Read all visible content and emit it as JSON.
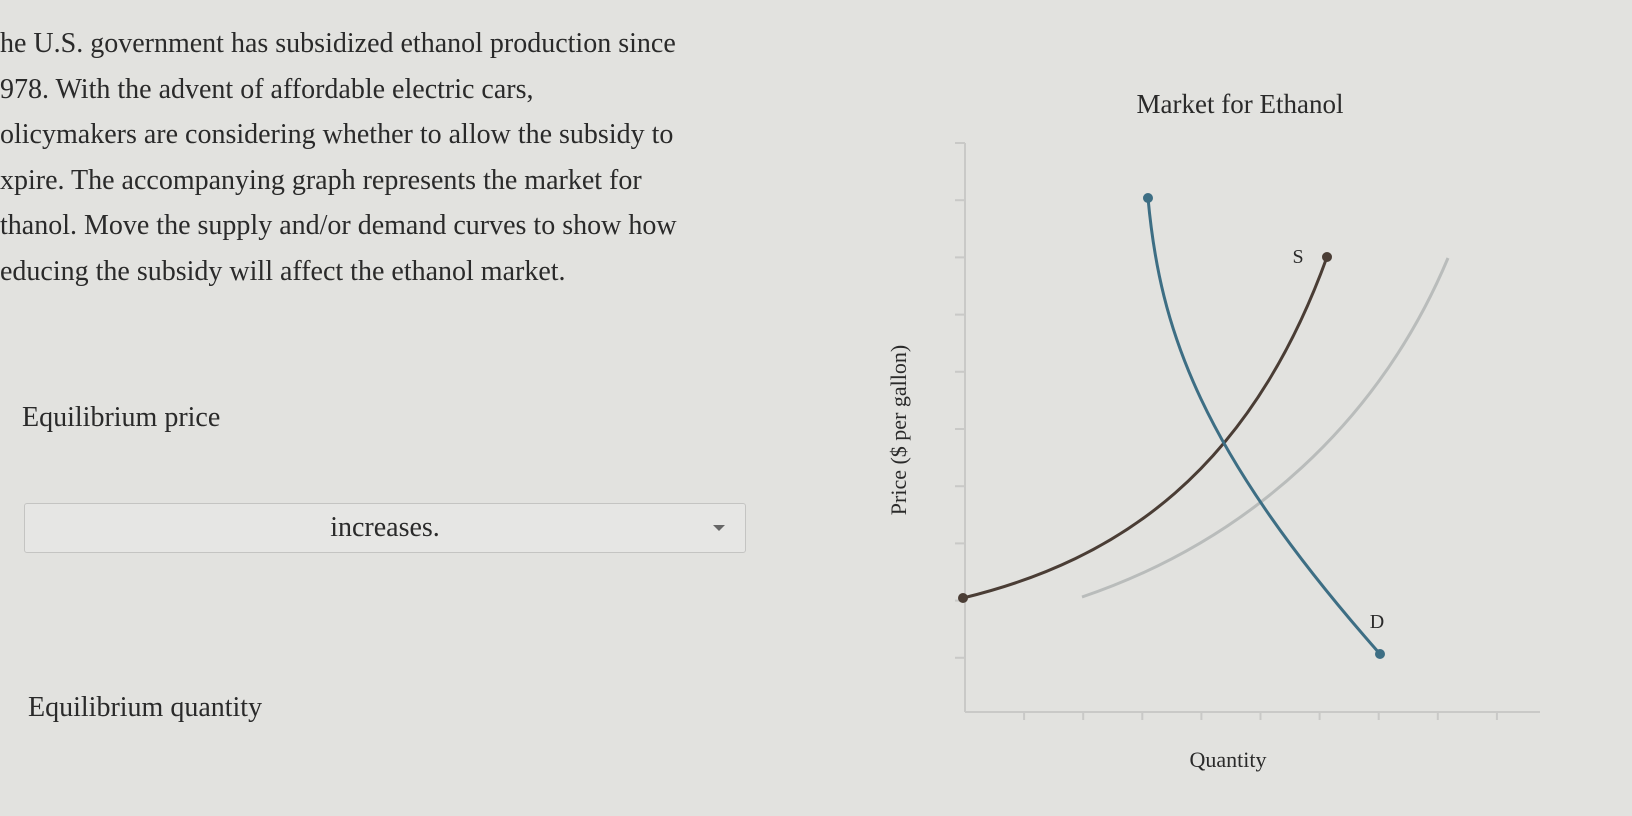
{
  "question": {
    "lines": [
      "he U.S. government has subsidized ethanol production since",
      "978. With the advent of affordable electric cars,",
      "olicymakers are considering whether to allow the subsidy to",
      "xpire. The accompanying graph represents the market for",
      "thanol. Move the supply and/or demand curves to show how",
      "educing the subsidy will affect the ethanol market."
    ]
  },
  "answers": {
    "price_label": "Equilibrium price",
    "price_choice": "increases.",
    "quantity_label": "Equilibrium quantity"
  },
  "graph": {
    "title": "Market for Ethanol",
    "y_label": "Price ($ per gallon)",
    "x_label": "Quantity",
    "supply_label": "S",
    "demand_label": "D"
  }
}
